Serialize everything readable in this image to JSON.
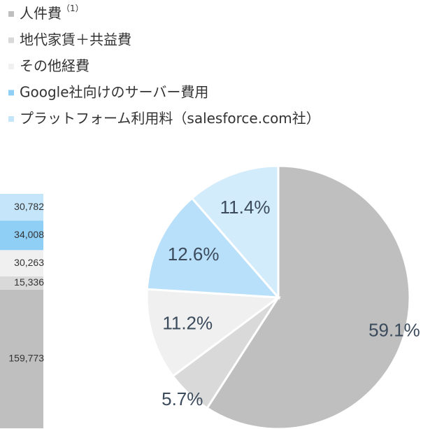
{
  "chart_data": [
    {
      "type": "bar",
      "stacked": true,
      "series": [
        {
          "name": "人件費",
          "superscript": "（1）",
          "color": "#bfbfbf",
          "values": [
            159773
          ],
          "value_labels": [
            "159,773"
          ]
        },
        {
          "name": "地代家賃＋共益費",
          "color": "#d9d9d9",
          "values": [
            15336
          ],
          "value_labels": [
            "15,336"
          ]
        },
        {
          "name": "その他経費",
          "color": "#f0f0f0",
          "values": [
            30263
          ],
          "value_labels": [
            "30,263"
          ]
        },
        {
          "name": "Google社向けのサーバー費用",
          "color": "#8fcff6",
          "values": [
            34008
          ],
          "value_labels": [
            "34,008"
          ]
        },
        {
          "name": "プラットフォーム利用料（salesforce.com社）",
          "color": "#c4e5fa",
          "values": [
            30782
          ],
          "value_labels": [
            "30,782"
          ]
        }
      ]
    },
    {
      "type": "pie",
      "values": [
        59.1,
        5.7,
        11.2,
        12.6,
        11.4
      ],
      "value_labels": [
        "59.1%",
        "5.7%",
        "11.2%",
        "12.6%",
        "11.4%"
      ],
      "colors": [
        "#bfbfbf",
        "#d9d9d9",
        "#f0f0f0",
        "#b8e0fa",
        "#d3ecfb"
      ]
    }
  ]
}
